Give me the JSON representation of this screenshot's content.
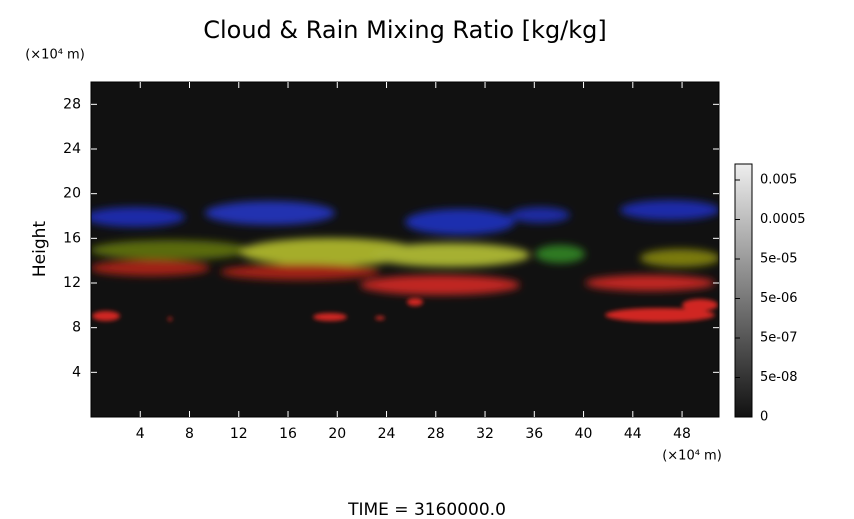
{
  "chart_data": {
    "type": "volume",
    "title": "Cloud & Rain Mixing Ratio [kg/kg]",
    "ylabel": "Height",
    "y_unit_label": "(×10⁴ m)",
    "x_unit_label": "(×10⁴ m)",
    "xlim": [
      0,
      51
    ],
    "xticks": [
      4,
      8,
      12,
      16,
      20,
      24,
      28,
      32,
      36,
      40,
      44,
      48
    ],
    "ylim": [
      0,
      30
    ],
    "yticks": [
      4,
      8,
      12,
      16,
      20,
      24,
      28
    ],
    "colorbar_labels": [
      "0",
      "5e-08",
      "5e-07",
      "5e-06",
      "5e-05",
      "0.0005",
      "0.005"
    ],
    "footer": "TIME = 3160000.0"
  }
}
